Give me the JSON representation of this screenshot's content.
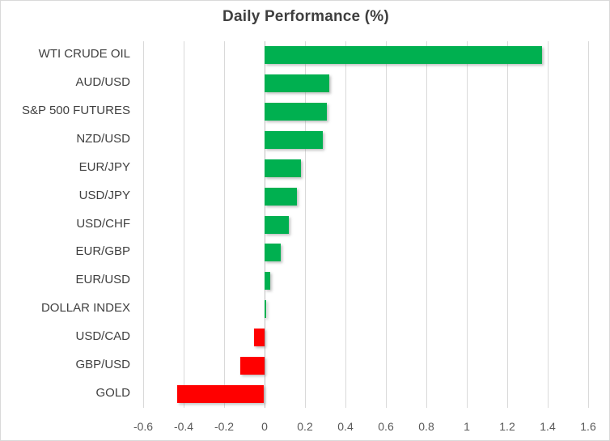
{
  "chart": {
    "title": "Daily Performance (%)"
  },
  "chart_data": {
    "type": "bar",
    "orientation": "horizontal",
    "title": "Daily Performance (%)",
    "categories": [
      "WTI CRUDE OIL",
      "AUD/USD",
      "S&P 500 FUTURES",
      "NZD/USD",
      "EUR/JPY",
      "USD/JPY",
      "USD/CHF",
      "EUR/GBP",
      "EUR/USD",
      "DOLLAR INDEX",
      "USD/CAD",
      "GBP/USD",
      "GOLD"
    ],
    "values": [
      1.37,
      0.32,
      0.31,
      0.29,
      0.18,
      0.16,
      0.12,
      0.08,
      0.03,
      0.01,
      -0.05,
      -0.12,
      -0.43
    ],
    "xlabel": "",
    "ylabel": "",
    "xlim": [
      -0.6,
      1.6
    ],
    "x_ticks": [
      -0.6,
      -0.4,
      -0.2,
      0,
      0.2,
      0.4,
      0.6,
      0.8,
      1,
      1.2,
      1.4,
      1.6
    ],
    "x_tick_labels": [
      "-0.6",
      "-0.4",
      "-0.2",
      "0",
      "0.2",
      "0.4",
      "0.6",
      "0.8",
      "1",
      "1.2",
      "1.4",
      "1.6"
    ],
    "grid": true,
    "legend": false,
    "colors": {
      "positive": "#00B050",
      "negative": "#FF0000",
      "gridline": "#D9D9D9",
      "axis_line": "#BFBFBF",
      "title_text": "#3F3F3F",
      "category_text": "#404040",
      "tick_text": "#595959"
    }
  }
}
